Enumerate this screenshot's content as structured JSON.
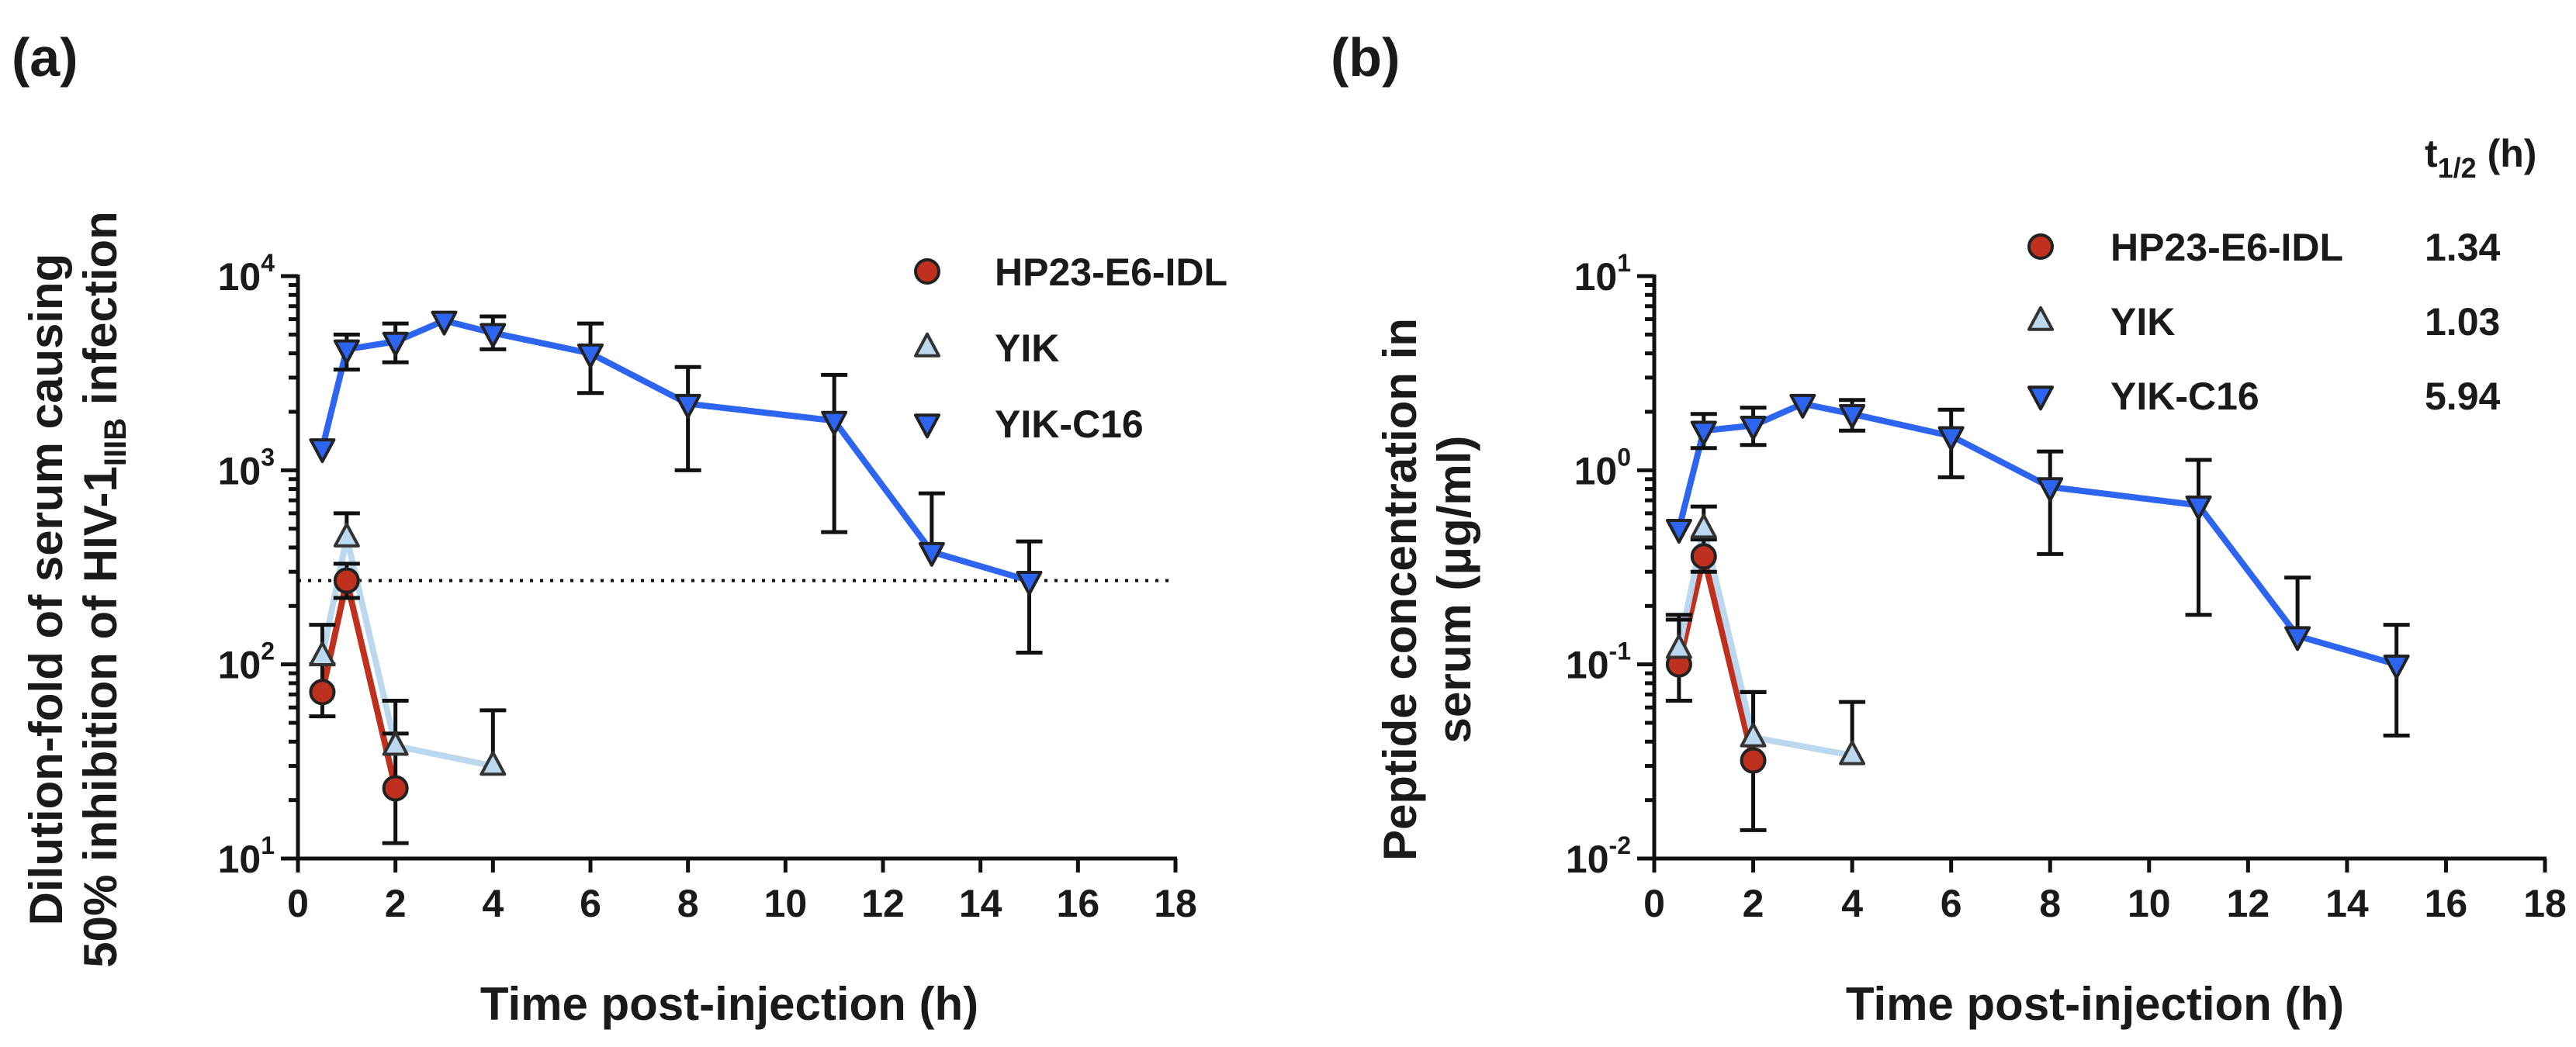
{
  "colors": {
    "HP23-E6-IDL": "#c0301e",
    "YIK": "#bcd8ee",
    "YIK-C16": "#2d64f0",
    "axis": "#111111"
  },
  "chart_data": [
    {
      "panel": "(a)",
      "type": "line",
      "yscale": "log",
      "xlabel": "Time post-injection (h)",
      "ylabel_line1": "Dilution-fold of serum causing",
      "ylabel_line2_prefix": "50% inhibition of HIV-1",
      "ylabel_line2_subscript": "IIIB",
      "ylabel_line2_suffix": " infection",
      "xlim": [
        0,
        18
      ],
      "xticks": [
        0,
        2,
        4,
        6,
        8,
        10,
        12,
        14,
        16,
        18
      ],
      "ylim": [
        10,
        10000
      ],
      "yticks": [
        {
          "value": 10,
          "base": "10",
          "exp": "1"
        },
        {
          "value": 100,
          "base": "10",
          "exp": "2"
        },
        {
          "value": 1000,
          "base": "10",
          "exp": "3"
        },
        {
          "value": 10000,
          "base": "10",
          "exp": "4"
        }
      ],
      "reference_line": {
        "y": 270,
        "style": "dotted"
      },
      "legend_position": "top-right",
      "series": [
        {
          "name": "HP23-E6-IDL",
          "marker": "circle",
          "x": [
            0.5,
            1,
            2
          ],
          "y": [
            72,
            270,
            23
          ],
          "err_low": [
            54,
            220,
            12
          ],
          "err_high": [
            100,
            330,
            44
          ]
        },
        {
          "name": "YIK",
          "marker": "triangle-up",
          "x": [
            0.5,
            1,
            2,
            4
          ],
          "y": [
            110,
            450,
            38,
            30
          ],
          "err_low": [
            null,
            null,
            null,
            null
          ],
          "err_high": [
            160,
            600,
            65,
            58
          ]
        },
        {
          "name": "YIK-C16",
          "marker": "triangle-down",
          "x": [
            0.5,
            1,
            2,
            3,
            4,
            6,
            8,
            11,
            13,
            15
          ],
          "y": [
            1300,
            4200,
            4600,
            5900,
            5100,
            4000,
            2200,
            1800,
            380,
            270
          ],
          "err_low": [
            null,
            3300,
            3600,
            null,
            4200,
            2500,
            1000,
            480,
            null,
            115
          ],
          "err_high": [
            null,
            5000,
            5700,
            null,
            6200,
            5700,
            3400,
            3100,
            760,
            430
          ]
        }
      ]
    },
    {
      "panel": "(b)",
      "type": "line",
      "yscale": "log",
      "xlabel": "Time post-injection (h)",
      "ylabel_line1": "Peptide concentration in",
      "ylabel_line2": "serum (μg/ml)",
      "xlim": [
        0,
        18
      ],
      "xticks": [
        0,
        2,
        4,
        6,
        8,
        10,
        12,
        14,
        16,
        18
      ],
      "ylim": [
        0.01,
        10
      ],
      "yticks": [
        {
          "value": 0.01,
          "base": "10",
          "exp": "-2"
        },
        {
          "value": 0.1,
          "base": "10",
          "exp": "-1"
        },
        {
          "value": 1,
          "base": "10",
          "exp": "0"
        },
        {
          "value": 10,
          "base": "10",
          "exp": "1"
        }
      ],
      "legend_position": "top-right",
      "halflife_header_main": "t",
      "halflife_header_sub": "1/2",
      "halflife_header_suffix": " (h)",
      "series": [
        {
          "name": "HP23-E6-IDL",
          "marker": "circle",
          "half_life": "1.34",
          "x": [
            0.5,
            1,
            2
          ],
          "y": [
            0.1,
            0.36,
            0.032
          ],
          "err_low": [
            0.065,
            0.3,
            0.014
          ],
          "err_high": [
            0.17,
            0.44,
            0.072
          ]
        },
        {
          "name": "YIK",
          "marker": "triangle-up",
          "half_life": "1.03",
          "x": [
            0.5,
            1,
            2,
            4
          ],
          "y": [
            0.12,
            0.5,
            0.042,
            0.034
          ],
          "err_low": [
            null,
            null,
            null,
            null
          ],
          "err_high": [
            0.18,
            0.65,
            0.072,
            0.064
          ]
        },
        {
          "name": "YIK-C16",
          "marker": "triangle-down",
          "half_life": "5.94",
          "x": [
            0.5,
            1,
            2,
            3,
            4,
            6,
            8,
            11,
            13,
            15
          ],
          "y": [
            0.5,
            1.6,
            1.7,
            2.2,
            1.95,
            1.5,
            0.82,
            0.66,
            0.14,
            0.1
          ],
          "err_low": [
            null,
            1.3,
            1.35,
            null,
            1.6,
            0.92,
            0.37,
            0.18,
            null,
            0.043
          ],
          "err_high": [
            null,
            1.95,
            2.1,
            null,
            2.3,
            2.05,
            1.25,
            1.13,
            0.28,
            0.16
          ]
        }
      ]
    }
  ]
}
